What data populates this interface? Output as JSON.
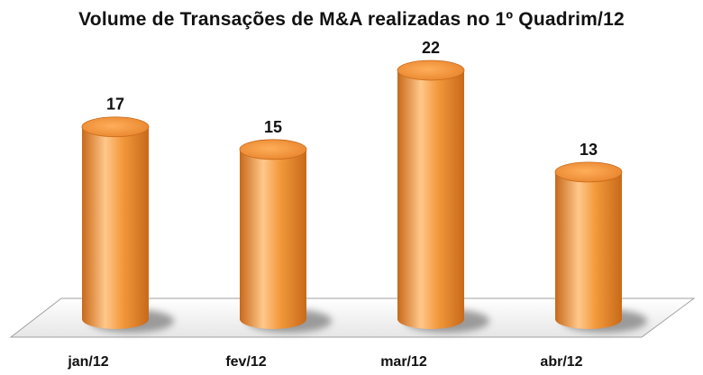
{
  "chart_data": {
    "type": "bar",
    "style": "3d-cylinder",
    "title": "Volume de Transações de M&A realizadas no 1º Quadrim/12",
    "categories": [
      "jan/12",
      "fev/12",
      "mar/12",
      "abr/12"
    ],
    "values": [
      17,
      15,
      22,
      13
    ],
    "xlabel": "",
    "ylabel": "",
    "ylim": [
      0,
      22
    ],
    "grid": false,
    "legend": "none",
    "bar_color": "#f39a3c",
    "bar_highlight": "#ffc88a",
    "bar_shadow": "#c8691a"
  }
}
